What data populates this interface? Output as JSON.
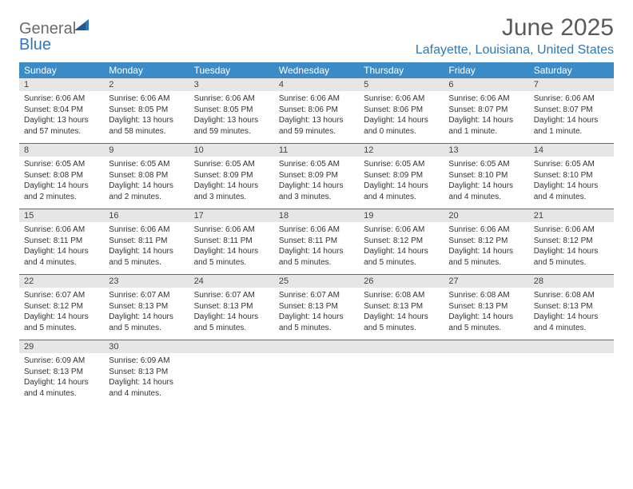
{
  "brand": {
    "part1": "General",
    "part2": "Blue"
  },
  "title": "June 2025",
  "location": "Lafayette, Louisiana, United States",
  "colors": {
    "header_blue": "#3b8bc8",
    "accent_blue": "#2f77b8",
    "daynum_bg": "#e6e6e6",
    "title_gray": "#5a5a5a"
  },
  "daysOfWeek": [
    "Sunday",
    "Monday",
    "Tuesday",
    "Wednesday",
    "Thursday",
    "Friday",
    "Saturday"
  ],
  "weeks": [
    [
      {
        "n": "1",
        "sr": "6:06 AM",
        "ss": "8:04 PM",
        "dl": "13 hours and 57 minutes."
      },
      {
        "n": "2",
        "sr": "6:06 AM",
        "ss": "8:05 PM",
        "dl": "13 hours and 58 minutes."
      },
      {
        "n": "3",
        "sr": "6:06 AM",
        "ss": "8:05 PM",
        "dl": "13 hours and 59 minutes."
      },
      {
        "n": "4",
        "sr": "6:06 AM",
        "ss": "8:06 PM",
        "dl": "13 hours and 59 minutes."
      },
      {
        "n": "5",
        "sr": "6:06 AM",
        "ss": "8:06 PM",
        "dl": "14 hours and 0 minutes."
      },
      {
        "n": "6",
        "sr": "6:06 AM",
        "ss": "8:07 PM",
        "dl": "14 hours and 1 minute."
      },
      {
        "n": "7",
        "sr": "6:06 AM",
        "ss": "8:07 PM",
        "dl": "14 hours and 1 minute."
      }
    ],
    [
      {
        "n": "8",
        "sr": "6:05 AM",
        "ss": "8:08 PM",
        "dl": "14 hours and 2 minutes."
      },
      {
        "n": "9",
        "sr": "6:05 AM",
        "ss": "8:08 PM",
        "dl": "14 hours and 2 minutes."
      },
      {
        "n": "10",
        "sr": "6:05 AM",
        "ss": "8:09 PM",
        "dl": "14 hours and 3 minutes."
      },
      {
        "n": "11",
        "sr": "6:05 AM",
        "ss": "8:09 PM",
        "dl": "14 hours and 3 minutes."
      },
      {
        "n": "12",
        "sr": "6:05 AM",
        "ss": "8:09 PM",
        "dl": "14 hours and 4 minutes."
      },
      {
        "n": "13",
        "sr": "6:05 AM",
        "ss": "8:10 PM",
        "dl": "14 hours and 4 minutes."
      },
      {
        "n": "14",
        "sr": "6:05 AM",
        "ss": "8:10 PM",
        "dl": "14 hours and 4 minutes."
      }
    ],
    [
      {
        "n": "15",
        "sr": "6:06 AM",
        "ss": "8:11 PM",
        "dl": "14 hours and 4 minutes."
      },
      {
        "n": "16",
        "sr": "6:06 AM",
        "ss": "8:11 PM",
        "dl": "14 hours and 5 minutes."
      },
      {
        "n": "17",
        "sr": "6:06 AM",
        "ss": "8:11 PM",
        "dl": "14 hours and 5 minutes."
      },
      {
        "n": "18",
        "sr": "6:06 AM",
        "ss": "8:11 PM",
        "dl": "14 hours and 5 minutes."
      },
      {
        "n": "19",
        "sr": "6:06 AM",
        "ss": "8:12 PM",
        "dl": "14 hours and 5 minutes."
      },
      {
        "n": "20",
        "sr": "6:06 AM",
        "ss": "8:12 PM",
        "dl": "14 hours and 5 minutes."
      },
      {
        "n": "21",
        "sr": "6:06 AM",
        "ss": "8:12 PM",
        "dl": "14 hours and 5 minutes."
      }
    ],
    [
      {
        "n": "22",
        "sr": "6:07 AM",
        "ss": "8:12 PM",
        "dl": "14 hours and 5 minutes."
      },
      {
        "n": "23",
        "sr": "6:07 AM",
        "ss": "8:13 PM",
        "dl": "14 hours and 5 minutes."
      },
      {
        "n": "24",
        "sr": "6:07 AM",
        "ss": "8:13 PM",
        "dl": "14 hours and 5 minutes."
      },
      {
        "n": "25",
        "sr": "6:07 AM",
        "ss": "8:13 PM",
        "dl": "14 hours and 5 minutes."
      },
      {
        "n": "26",
        "sr": "6:08 AM",
        "ss": "8:13 PM",
        "dl": "14 hours and 5 minutes."
      },
      {
        "n": "27",
        "sr": "6:08 AM",
        "ss": "8:13 PM",
        "dl": "14 hours and 5 minutes."
      },
      {
        "n": "28",
        "sr": "6:08 AM",
        "ss": "8:13 PM",
        "dl": "14 hours and 4 minutes."
      }
    ],
    [
      {
        "n": "29",
        "sr": "6:09 AM",
        "ss": "8:13 PM",
        "dl": "14 hours and 4 minutes."
      },
      {
        "n": "30",
        "sr": "6:09 AM",
        "ss": "8:13 PM",
        "dl": "14 hours and 4 minutes."
      },
      null,
      null,
      null,
      null,
      null
    ]
  ],
  "labels": {
    "sunrise": "Sunrise:",
    "sunset": "Sunset:",
    "daylight": "Daylight:"
  }
}
